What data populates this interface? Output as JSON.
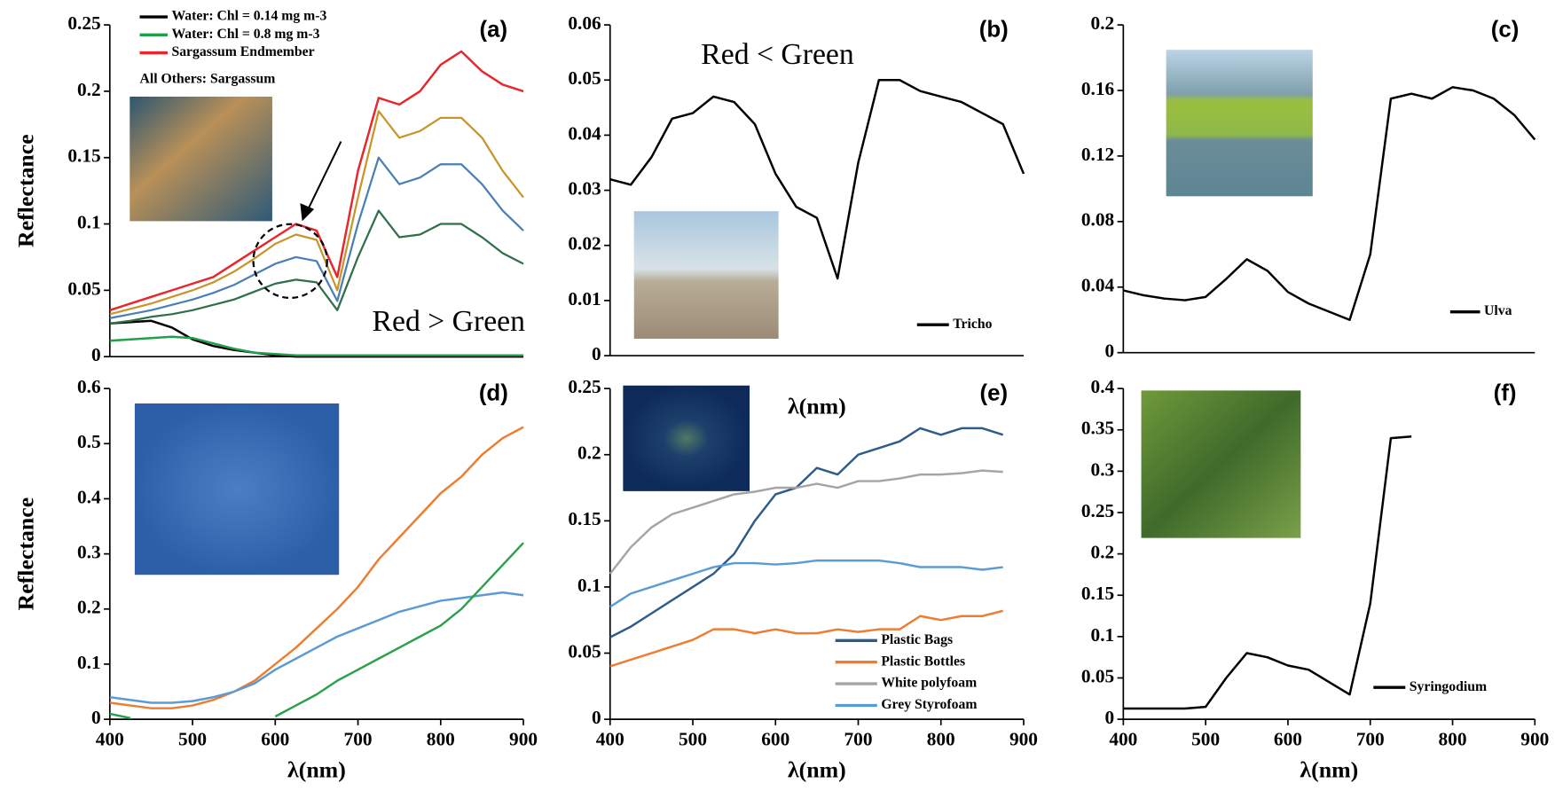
{
  "chart_data": [
    {
      "type": "line",
      "title": "(a)",
      "ylabel": "Reflectance",
      "x": [
        400,
        425,
        450,
        475,
        500,
        525,
        550,
        575,
        600,
        625,
        650,
        675,
        700,
        725,
        750,
        775,
        800,
        825,
        850,
        875,
        900
      ],
      "xlim": [
        400,
        900
      ],
      "ylim": [
        0,
        0.25
      ],
      "yticks": [
        0,
        0.05,
        0.1,
        0.15,
        0.2,
        0.25
      ],
      "legend": "upper left",
      "annotations": [
        "Red > Green",
        "All Others: Sargassum"
      ],
      "series": [
        {
          "name": "Water: Chl = 0.14 mg m-3",
          "color": "#000000",
          "values": [
            0.025,
            0.026,
            0.027,
            0.022,
            0.013,
            0.008,
            0.005,
            0.003,
            0.001,
            0,
            0,
            0,
            0,
            0,
            0,
            0,
            0,
            0,
            0,
            0,
            0
          ]
        },
        {
          "name": "Water: Chl = 0.8 mg m-3",
          "color": "#1fa04a",
          "values": [
            0.012,
            0.013,
            0.014,
            0.015,
            0.014,
            0.01,
            0.006,
            0.003,
            0.002,
            0.001,
            0.001,
            0.001,
            0.001,
            0.001,
            0.001,
            0.001,
            0.001,
            0.001,
            0.001,
            0.001,
            0.001
          ]
        },
        {
          "name": "Sargassum Endmember",
          "color": "#e8262b",
          "values": [
            0.035,
            0.04,
            0.045,
            0.05,
            0.055,
            0.06,
            0.07,
            0.08,
            0.09,
            0.1,
            0.095,
            0.06,
            0.14,
            0.195,
            0.19,
            0.2,
            0.22,
            0.23,
            0.215,
            0.205,
            0.2
          ]
        },
        {
          "color": "#c8952a",
          "values": [
            0.032,
            0.036,
            0.04,
            0.045,
            0.05,
            0.056,
            0.064,
            0.074,
            0.085,
            0.092,
            0.088,
            0.05,
            0.12,
            0.185,
            0.165,
            0.17,
            0.18,
            0.18,
            0.165,
            0.14,
            0.12
          ]
        },
        {
          "color": "#4a7fb5",
          "values": [
            0.029,
            0.032,
            0.035,
            0.039,
            0.043,
            0.048,
            0.054,
            0.062,
            0.07,
            0.075,
            0.072,
            0.042,
            0.1,
            0.15,
            0.13,
            0.135,
            0.145,
            0.145,
            0.13,
            0.11,
            0.095
          ]
        },
        {
          "color": "#2f6f4a",
          "values": [
            0.025,
            0.027,
            0.03,
            0.032,
            0.035,
            0.039,
            0.043,
            0.049,
            0.055,
            0.058,
            0.056,
            0.035,
            0.075,
            0.11,
            0.09,
            0.092,
            0.1,
            0.1,
            0.09,
            0.078,
            0.07
          ]
        }
      ]
    },
    {
      "type": "line",
      "title": "(b)",
      "xlabel": "λ(nm)",
      "x": [
        400,
        425,
        450,
        475,
        500,
        525,
        550,
        575,
        600,
        625,
        650,
        675,
        700,
        725,
        750,
        775,
        800,
        825,
        850,
        875,
        900
      ],
      "xlim": [
        400,
        900
      ],
      "ylim": [
        0,
        0.06
      ],
      "yticks": [
        0,
        0.01,
        0.02,
        0.03,
        0.04,
        0.05,
        0.06
      ],
      "legend": "lower right",
      "annotations": [
        "Red < Green"
      ],
      "series": [
        {
          "name": "Tricho",
          "color": "#000000",
          "values": [
            0.032,
            0.031,
            0.036,
            0.043,
            0.044,
            0.047,
            0.046,
            0.042,
            0.033,
            0.027,
            0.025,
            0.014,
            0.035,
            0.05,
            0.05,
            0.048,
            0.047,
            0.046,
            0.044,
            0.042,
            0.033
          ]
        }
      ]
    },
    {
      "type": "line",
      "title": "(c)",
      "x": [
        400,
        425,
        450,
        475,
        500,
        525,
        550,
        575,
        600,
        625,
        650,
        675,
        700,
        725,
        750,
        775,
        800,
        825,
        850,
        875,
        900
      ],
      "xlim": [
        400,
        900
      ],
      "ylim": [
        0,
        0.2
      ],
      "yticks": [
        0,
        0.04,
        0.08,
        0.12,
        0.16,
        0.2
      ],
      "legend": "lower right",
      "series": [
        {
          "name": "Ulva",
          "color": "#000000",
          "values": [
            0.038,
            0.035,
            0.033,
            0.032,
            0.034,
            0.045,
            0.057,
            0.05,
            0.037,
            0.03,
            0.025,
            0.02,
            0.06,
            0.155,
            0.158,
            0.155,
            0.162,
            0.16,
            0.155,
            0.145,
            0.13
          ]
        }
      ]
    },
    {
      "type": "line",
      "title": "(d)",
      "ylabel": "Reflectance",
      "xlabel": "λ(nm)",
      "x": [
        400,
        425,
        450,
        475,
        500,
        525,
        550,
        575,
        600,
        625,
        650,
        675,
        700,
        725,
        750,
        775,
        800,
        825,
        850,
        875,
        900
      ],
      "xlim": [
        400,
        900
      ],
      "xticks": [
        400,
        500,
        600,
        700,
        800,
        900
      ],
      "ylim": [
        0,
        0.6
      ],
      "yticks": [
        0,
        0.1,
        0.2,
        0.3,
        0.4,
        0.5,
        0.6
      ],
      "series": [
        {
          "color": "#ed7d31",
          "values": [
            0.03,
            0.025,
            0.02,
            0.02,
            0.025,
            0.035,
            0.05,
            0.07,
            0.1,
            0.13,
            0.165,
            0.2,
            0.24,
            0.29,
            0.33,
            0.37,
            0.41,
            0.44,
            0.48,
            0.51,
            0.53
          ]
        },
        {
          "color": "#5b9bd5",
          "values": [
            0.04,
            0.035,
            0.03,
            0.03,
            0.033,
            0.04,
            0.05,
            0.065,
            0.09,
            0.11,
            0.13,
            0.15,
            0.165,
            0.18,
            0.195,
            0.205,
            0.215,
            0.22,
            0.225,
            0.23,
            0.225
          ]
        },
        {
          "color": "#2ca04a",
          "values": [
            0.01,
            0.002,
            null,
            null,
            null,
            null,
            null,
            null,
            0.005,
            0.025,
            0.045,
            0.07,
            0.09,
            0.11,
            0.13,
            0.15,
            0.17,
            0.2,
            0.24,
            0.28,
            0.32
          ]
        }
      ]
    },
    {
      "type": "line",
      "title": "(e)",
      "xlabel": "λ(nm)",
      "x": [
        400,
        425,
        450,
        475,
        500,
        525,
        550,
        575,
        600,
        625,
        650,
        675,
        700,
        725,
        750,
        775,
        800,
        825,
        850,
        875
      ],
      "xlim": [
        400,
        900
      ],
      "xticks": [
        400,
        500,
        600,
        700,
        800,
        900
      ],
      "ylim": [
        0,
        0.25
      ],
      "yticks": [
        0,
        0.05,
        0.1,
        0.15,
        0.2,
        0.25
      ],
      "legend": "lower right",
      "series": [
        {
          "name": "Plastic Bags",
          "color": "#2e5c8a",
          "values": [
            0.062,
            0.07,
            0.08,
            0.09,
            0.1,
            0.11,
            0.125,
            0.15,
            0.17,
            0.175,
            0.19,
            0.185,
            0.2,
            0.205,
            0.21,
            0.22,
            0.215,
            0.22,
            0.22,
            0.215
          ]
        },
        {
          "name": "Plastic Bottles",
          "color": "#ed7d31",
          "values": [
            0.04,
            0.045,
            0.05,
            0.055,
            0.06,
            0.068,
            0.068,
            0.065,
            0.068,
            0.065,
            0.065,
            0.068,
            0.066,
            0.068,
            0.068,
            0.078,
            0.075,
            0.078,
            0.078,
            0.082
          ]
        },
        {
          "name": "White polyfoam",
          "color": "#a5a5a5",
          "values": [
            0.11,
            0.13,
            0.145,
            0.155,
            0.16,
            0.165,
            0.17,
            0.172,
            0.175,
            0.175,
            0.178,
            0.175,
            0.18,
            0.18,
            0.182,
            0.185,
            0.185,
            0.186,
            0.188,
            0.187
          ]
        },
        {
          "name": "Grey Styrofoam",
          "color": "#5b9bd5",
          "values": [
            0.085,
            0.095,
            0.1,
            0.105,
            0.11,
            0.115,
            0.118,
            0.118,
            0.117,
            0.118,
            0.12,
            0.12,
            0.12,
            0.12,
            0.118,
            0.115,
            0.115,
            0.115,
            0.113,
            0.115
          ]
        }
      ]
    },
    {
      "type": "line",
      "title": "(f)",
      "xlabel": "λ(nm)",
      "x": [
        400,
        425,
        450,
        475,
        500,
        525,
        550,
        575,
        600,
        625,
        650,
        675,
        700,
        725,
        750
      ],
      "xlim": [
        400,
        900
      ],
      "xticks": [
        400,
        500,
        600,
        700,
        800,
        900
      ],
      "ylim": [
        0,
        0.4
      ],
      "yticks": [
        0,
        0.05,
        0.1,
        0.15,
        0.2,
        0.25,
        0.3,
        0.35,
        0.4
      ],
      "legend": "lower right",
      "series": [
        {
          "name": "Syringodium",
          "color": "#000000",
          "values": [
            0.013,
            0.013,
            0.013,
            0.013,
            0.015,
            0.05,
            0.08,
            0.075,
            0.065,
            0.06,
            0.045,
            0.03,
            0.14,
            0.34,
            0.342
          ]
        }
      ]
    }
  ]
}
